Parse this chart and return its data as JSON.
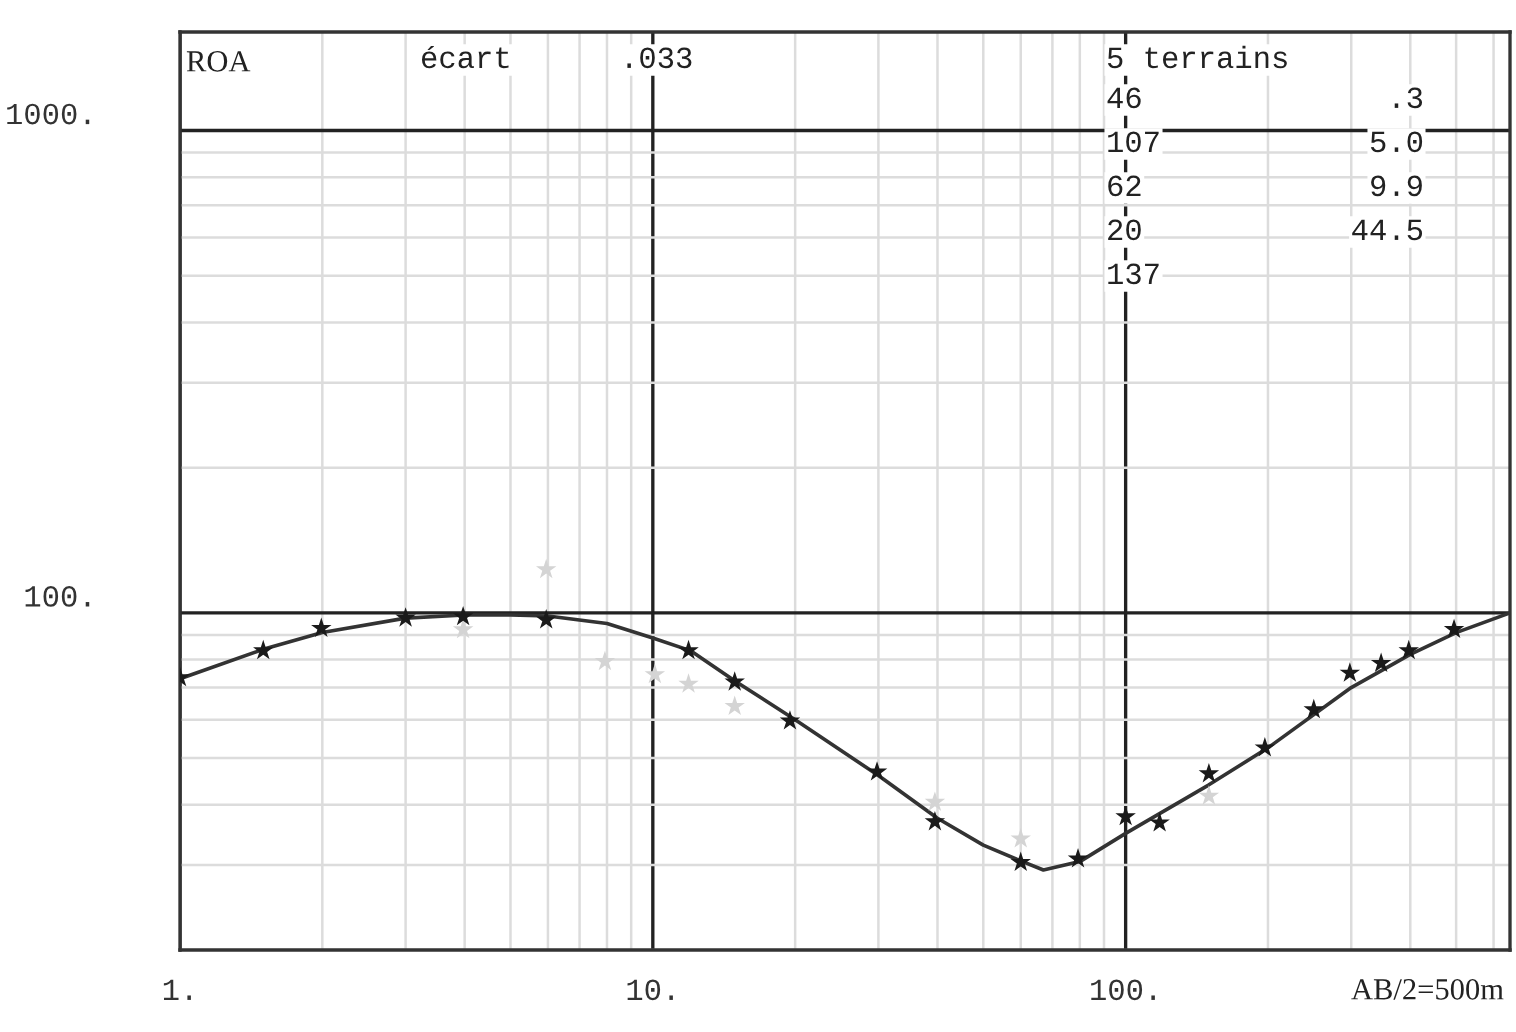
{
  "chart_data": {
    "type": "scatter",
    "ylabel": "ROA",
    "log": "xy",
    "grid": true,
    "marker": "star",
    "xlim": [
      1,
      650
    ],
    "ylim": [
      20,
      1600
    ],
    "xticks": [
      {
        "value": 1,
        "label": "1."
      },
      {
        "value": 2,
        "label": null
      },
      {
        "value": 3,
        "label": null
      },
      {
        "value": 4,
        "label": null
      },
      {
        "value": 5,
        "label": null
      },
      {
        "value": 6,
        "label": null
      },
      {
        "value": 7,
        "label": null
      },
      {
        "value": 8,
        "label": null
      },
      {
        "value": 9,
        "label": null
      },
      {
        "value": 10,
        "label": "10."
      },
      {
        "value": 20,
        "label": null
      },
      {
        "value": 30,
        "label": null
      },
      {
        "value": 40,
        "label": null
      },
      {
        "value": 50,
        "label": null
      },
      {
        "value": 60,
        "label": null
      },
      {
        "value": 70,
        "label": null
      },
      {
        "value": 80,
        "label": null
      },
      {
        "value": 90,
        "label": null
      },
      {
        "value": 100,
        "label": "100."
      },
      {
        "value": 200,
        "label": null
      },
      {
        "value": 300,
        "label": null
      },
      {
        "value": 400,
        "label": null
      },
      {
        "value": 500,
        "label": null
      },
      {
        "value": 600,
        "label": null
      }
    ],
    "yticks": [
      {
        "value": 20,
        "label": null
      },
      {
        "value": 30,
        "label": null
      },
      {
        "value": 40,
        "label": null
      },
      {
        "value": 50,
        "label": null
      },
      {
        "value": 60,
        "label": null
      },
      {
        "value": 70,
        "label": null
      },
      {
        "value": 80,
        "label": null
      },
      {
        "value": 90,
        "label": null
      },
      {
        "value": 100,
        "label": "100."
      },
      {
        "value": 200,
        "label": null
      },
      {
        "value": 300,
        "label": null
      },
      {
        "value": 400,
        "label": null
      },
      {
        "value": 500,
        "label": null
      },
      {
        "value": 600,
        "label": null
      },
      {
        "value": 700,
        "label": null
      },
      {
        "value": 800,
        "label": null
      },
      {
        "value": 900,
        "label": null
      },
      {
        "value": 1000,
        "label": "1000."
      }
    ],
    "series": [
      {
        "color": "#d4d4d4",
        "x": [
          3.97,
          5.95,
          7.92,
          10.1,
          11.9,
          14.9,
          39.5,
          60,
          150
        ],
        "values": [
          92.3,
          123,
          79.3,
          74.5,
          71.2,
          64,
          40.5,
          34,
          41.7
        ]
      },
      {
        "type": "line",
        "marker": "none",
        "color": "#333333",
        "x": [
          1,
          1.5,
          2,
          3,
          4,
          5,
          6,
          8,
          10,
          12,
          15,
          20,
          30,
          40,
          50,
          60,
          67,
          80,
          100,
          150,
          200,
          300,
          400,
          500,
          650
        ],
        "values": [
          73,
          84,
          91,
          97.5,
          99,
          99,
          98.5,
          95,
          88.7,
          83.5,
          72,
          60,
          46,
          37.5,
          33,
          30.6,
          29.3,
          30.5,
          34.9,
          44,
          52.5,
          70,
          82,
          91,
          100
        ]
      },
      {
        "color": "#1a1a1a",
        "x": [
          1.0,
          1.5,
          1.99,
          3.0,
          3.97,
          5.95,
          11.9,
          14.9,
          19.5,
          29.8,
          39.5,
          60,
          79.3,
          100,
          118,
          150,
          197,
          250,
          298,
          347,
          397,
          495
        ],
        "values": [
          73.4,
          83.5,
          92.9,
          97.6,
          98.2,
          96.7,
          83.5,
          71.9,
          59.7,
          46.8,
          36.9,
          30.4,
          30.9,
          37.8,
          36.7,
          46.4,
          52.5,
          63,
          75,
          78.6,
          83.5,
          92.4
        ]
      }
    ],
    "annotations": [
      "écart",
      ".033",
      "5 terrains",
      "46",
      ".3",
      "107",
      "5.0",
      "62",
      "9.9",
      "20",
      "44.5",
      "137",
      "AB/2=500m"
    ]
  }
}
